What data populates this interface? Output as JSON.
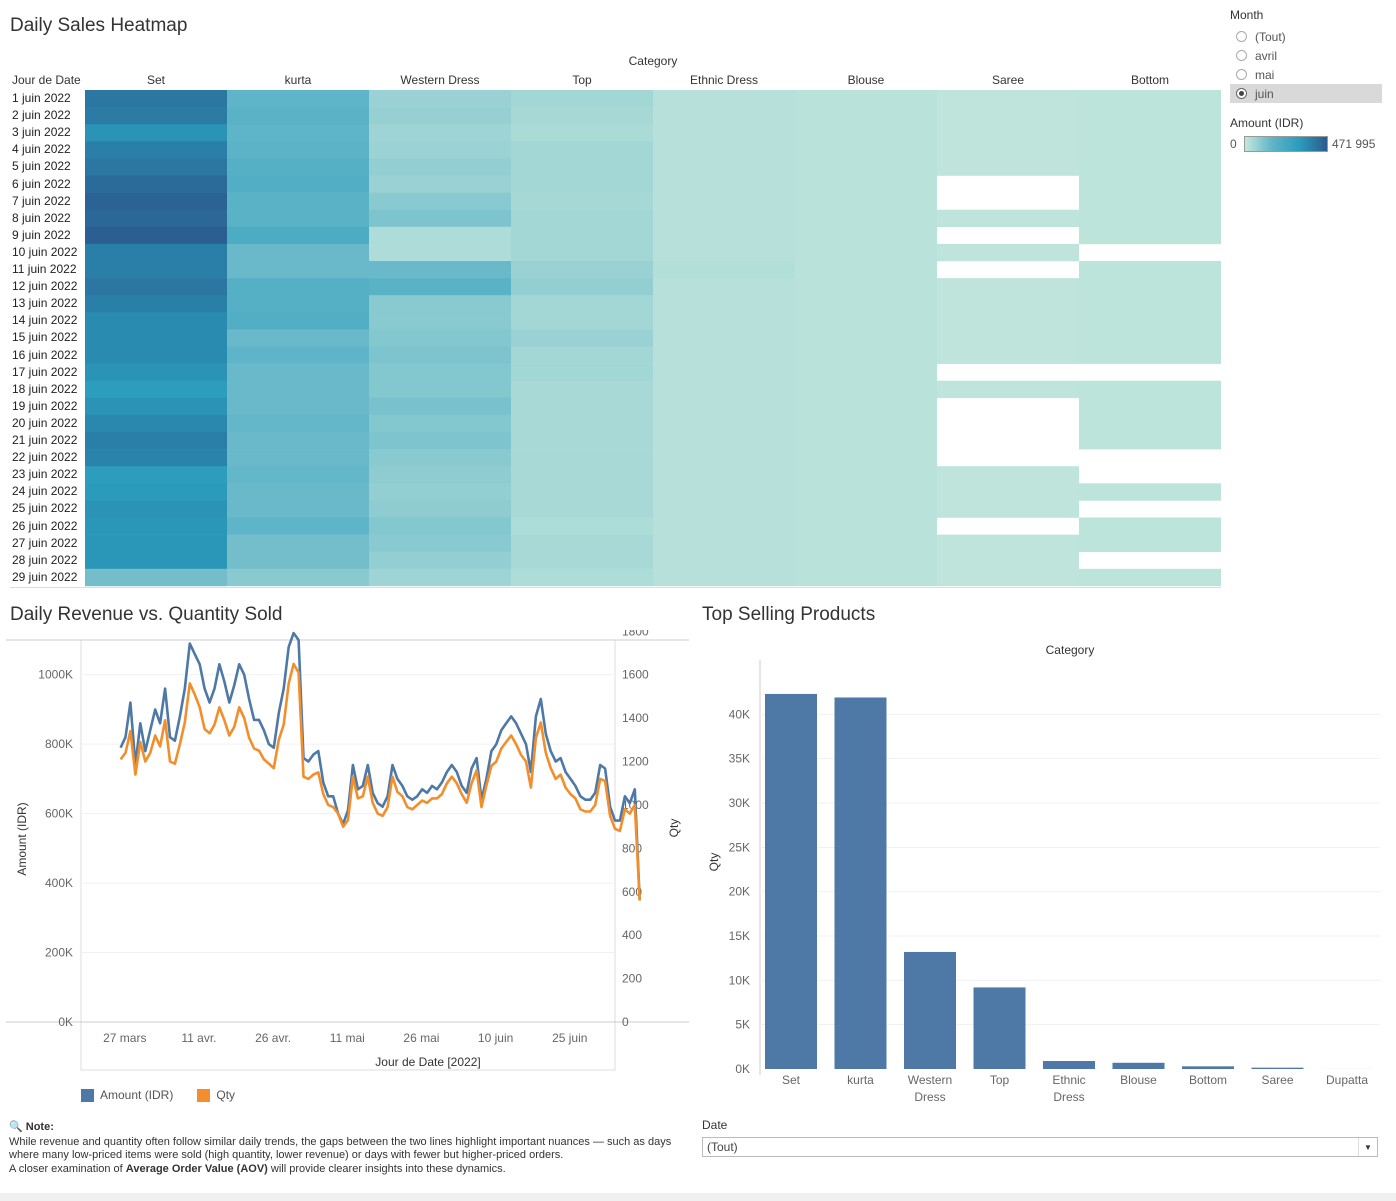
{
  "dashboard": {
    "heatmap_title": "Daily Sales Heatmap",
    "line_title": "Daily Revenue vs. Quantity Sold",
    "bar_title": "Top Selling Products"
  },
  "filters": {
    "month_label": "Month",
    "month_options": [
      "(Tout)",
      "avril",
      "mai",
      "juin"
    ],
    "month_selected": "juin",
    "color_legend_title": "Amount (IDR)",
    "color_legend_min": "0",
    "color_legend_max": "471 995",
    "date_label": "Date",
    "date_value": "(Tout)"
  },
  "note": {
    "icon": "magnifier-icon",
    "label": "Note:",
    "line1": "While revenue and quantity often follow similar daily trends, the gaps between the two lines highlight important nuances — such as days where many low-priced items were sold (high quantity, lower revenue) or days with fewer but higher-priced orders.",
    "line2_pre": "A closer examination of ",
    "line2_bold": "Average Order Value (AOV)",
    "line2_post": " will provide clearer insights into these dynamics."
  },
  "chart_data": [
    {
      "type": "heatmap",
      "title": "Daily Sales Heatmap",
      "column_header": "Category",
      "row_header": "Jour de Date",
      "categories": [
        "Set",
        "kurta",
        "Western Dress",
        "Top",
        "Ethnic Dress",
        "Blouse",
        "Saree",
        "Bottom"
      ],
      "rows": [
        "1 juin 2022",
        "2 juin 2022",
        "3 juin 2022",
        "4 juin 2022",
        "5 juin 2022",
        "6 juin 2022",
        "7 juin 2022",
        "8 juin 2022",
        "9 juin 2022",
        "10 juin 2022",
        "11 juin 2022",
        "12 juin 2022",
        "13 juin 2022",
        "14 juin 2022",
        "15 juin 2022",
        "16 juin 2022",
        "17 juin 2022",
        "18 juin 2022",
        "19 juin 2022",
        "20 juin 2022",
        "21 juin 2022",
        "22 juin 2022",
        "23 juin 2022",
        "24 juin 2022",
        "25 juin 2022",
        "26 juin 2022",
        "27 juin 2022",
        "28 juin 2022",
        "29 juin 2022"
      ],
      "value_range": [
        0,
        471995
      ],
      "values": [
        [
          400000,
          190000,
          80000,
          60000,
          25000,
          18000,
          10000,
          12000
        ],
        [
          390000,
          200000,
          85000,
          55000,
          25000,
          18000,
          10000,
          12000
        ],
        [
          330000,
          190000,
          70000,
          45000,
          25000,
          18000,
          10000,
          12000
        ],
        [
          380000,
          195000,
          75000,
          60000,
          25000,
          18000,
          10000,
          12000
        ],
        [
          400000,
          210000,
          90000,
          60000,
          25000,
          18000,
          10000,
          12000
        ],
        [
          430000,
          220000,
          80000,
          60000,
          25000,
          18000,
          null,
          12000
        ],
        [
          450000,
          200000,
          110000,
          55000,
          25000,
          18000,
          null,
          12000
        ],
        [
          440000,
          200000,
          130000,
          60000,
          25000,
          18000,
          10000,
          12000
        ],
        [
          460000,
          230000,
          40000,
          60000,
          25000,
          18000,
          null,
          12000
        ],
        [
          380000,
          170000,
          40000,
          60000,
          25000,
          18000,
          10000,
          null
        ],
        [
          380000,
          170000,
          170000,
          80000,
          30000,
          18000,
          null,
          12000
        ],
        [
          400000,
          210000,
          200000,
          90000,
          25000,
          18000,
          10000,
          12000
        ],
        [
          380000,
          210000,
          110000,
          60000,
          25000,
          18000,
          10000,
          12000
        ],
        [
          350000,
          220000,
          110000,
          60000,
          25000,
          18000,
          10000,
          12000
        ],
        [
          350000,
          170000,
          120000,
          80000,
          25000,
          18000,
          10000,
          12000
        ],
        [
          350000,
          190000,
          130000,
          60000,
          25000,
          18000,
          10000,
          12000
        ],
        [
          330000,
          170000,
          120000,
          60000,
          25000,
          18000,
          null,
          null
        ],
        [
          300000,
          170000,
          120000,
          50000,
          25000,
          18000,
          10000,
          12000
        ],
        [
          330000,
          170000,
          140000,
          50000,
          25000,
          18000,
          null,
          12000
        ],
        [
          360000,
          180000,
          120000,
          50000,
          25000,
          18000,
          null,
          12000
        ],
        [
          380000,
          170000,
          130000,
          50000,
          25000,
          18000,
          null,
          12000
        ],
        [
          370000,
          170000,
          110000,
          50000,
          25000,
          18000,
          null,
          null
        ],
        [
          300000,
          180000,
          100000,
          50000,
          25000,
          18000,
          10000,
          null
        ],
        [
          310000,
          170000,
          90000,
          50000,
          25000,
          18000,
          10000,
          12000
        ],
        [
          330000,
          170000,
          100000,
          50000,
          25000,
          18000,
          10000,
          null
        ],
        [
          320000,
          190000,
          120000,
          40000,
          25000,
          18000,
          null,
          12000
        ],
        [
          320000,
          150000,
          110000,
          50000,
          25000,
          18000,
          10000,
          12000
        ],
        [
          320000,
          150000,
          90000,
          50000,
          25000,
          18000,
          10000,
          null
        ],
        [
          150000,
          110000,
          70000,
          40000,
          25000,
          18000,
          10000,
          12000
        ]
      ]
    },
    {
      "type": "line",
      "title": "Daily Revenue vs. Quantity Sold",
      "xlabel": "Jour de Date [2022]",
      "ylabel": "Amount (IDR)",
      "y2label": "Qty",
      "x_ticks": [
        "27 mars",
        "11 avr.",
        "26 avr.",
        "11 mai",
        "26 mai",
        "10 juin",
        "25 juin"
      ],
      "x_tick_days": [
        0,
        15,
        30,
        45,
        60,
        75,
        90
      ],
      "ylim": [
        0,
        1100000
      ],
      "y_ticks": [
        "0K",
        "200K",
        "400K",
        "600K",
        "800K",
        "1000K"
      ],
      "y_tick_values": [
        0,
        200000,
        400000,
        600000,
        800000,
        1000000
      ],
      "y2lim": [
        0,
        1760
      ],
      "y2_ticks": [
        "0",
        "200",
        "400",
        "600",
        "800",
        "1000",
        "1200",
        "1400",
        "1600",
        "1800"
      ],
      "y2_tick_values": [
        0,
        200,
        400,
        600,
        800,
        1000,
        1200,
        1400,
        1600,
        1800
      ],
      "legend": [
        {
          "name": "Amount (IDR)",
          "color": "#4e79a7"
        },
        {
          "name": "Qty",
          "color": "#f28e2b"
        }
      ],
      "series": [
        {
          "name": "Amount (IDR)",
          "axis": "left",
          "color": "#4e79a7",
          "start": "31 mars",
          "values": [
            790000,
            820000,
            920000,
            740000,
            860000,
            780000,
            840000,
            900000,
            860000,
            960000,
            820000,
            810000,
            880000,
            960000,
            1090000,
            1060000,
            1030000,
            960000,
            920000,
            960000,
            1030000,
            980000,
            920000,
            970000,
            1030000,
            1000000,
            930000,
            870000,
            870000,
            840000,
            800000,
            790000,
            890000,
            960000,
            1080000,
            1120000,
            1100000,
            760000,
            750000,
            770000,
            780000,
            690000,
            650000,
            650000,
            600000,
            570000,
            610000,
            740000,
            670000,
            680000,
            740000,
            660000,
            630000,
            620000,
            650000,
            740000,
            700000,
            680000,
            650000,
            640000,
            650000,
            670000,
            660000,
            680000,
            670000,
            690000,
            720000,
            740000,
            720000,
            680000,
            660000,
            730000,
            760000,
            640000,
            700000,
            780000,
            800000,
            840000,
            860000,
            880000,
            860000,
            830000,
            800000,
            720000,
            880000,
            930000,
            830000,
            780000,
            750000,
            760000,
            720000,
            700000,
            680000,
            650000,
            640000,
            640000,
            660000,
            740000,
            730000,
            620000,
            580000,
            580000,
            650000,
            630000,
            670000,
            350000
          ]
        },
        {
          "name": "Qty",
          "axis": "right",
          "color": "#f28e2b",
          "start": "31 mars",
          "values": [
            1210,
            1240,
            1340,
            1140,
            1290,
            1200,
            1240,
            1320,
            1270,
            1390,
            1200,
            1190,
            1280,
            1380,
            1560,
            1510,
            1450,
            1350,
            1330,
            1370,
            1450,
            1390,
            1320,
            1360,
            1450,
            1400,
            1310,
            1260,
            1250,
            1210,
            1190,
            1170,
            1300,
            1370,
            1560,
            1650,
            1610,
            1130,
            1120,
            1140,
            1150,
            1050,
            1000,
            990,
            960,
            900,
            930,
            1130,
            1030,
            1040,
            1130,
            1010,
            960,
            950,
            990,
            1130,
            1060,
            1040,
            990,
            980,
            1000,
            1020,
            1010,
            1030,
            1030,
            1050,
            1100,
            1130,
            1100,
            1050,
            1010,
            1100,
            1160,
            990,
            1090,
            1180,
            1200,
            1260,
            1290,
            1320,
            1280,
            1230,
            1200,
            1080,
            1310,
            1380,
            1240,
            1170,
            1120,
            1140,
            1080,
            1050,
            1030,
            980,
            970,
            970,
            1000,
            1120,
            1110,
            950,
            890,
            880,
            980,
            960,
            1000,
            560
          ]
        }
      ]
    },
    {
      "type": "bar",
      "title": "Top Selling Products",
      "column_header": "Category",
      "ylabel": "Qty",
      "categories": [
        "Set",
        "kurta",
        "Western Dress",
        "Top",
        "Ethnic Dress",
        "Blouse",
        "Bottom",
        "Saree",
        "Dupatta"
      ],
      "values": [
        42300,
        41900,
        13200,
        9200,
        900,
        700,
        300,
        150,
        5
      ],
      "ylim": [
        0,
        45000
      ],
      "y_ticks": [
        "0K",
        "5K",
        "10K",
        "15K",
        "20K",
        "25K",
        "30K",
        "35K",
        "40K"
      ],
      "y_tick_values": [
        0,
        5000,
        10000,
        15000,
        20000,
        25000,
        30000,
        35000,
        40000
      ],
      "bar_color": "#4e79a7"
    }
  ]
}
